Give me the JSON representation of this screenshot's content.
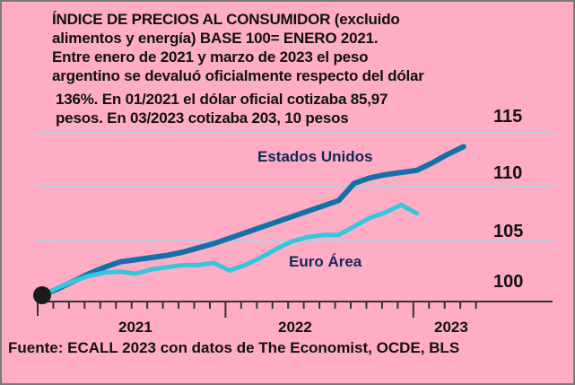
{
  "title_lines": [
    "ÍNDICE DE PRECIOS AL CONSUMIDOR (excluido",
    "alimentos y energía) BASE 100= ENERO 2021.",
    "Entre enero de 2021 y marzo de 2023 el peso",
    "argentino se devaluó oficialmente respecto del dólar",
    "136%. En 01/2021 el dólar oficial cotizaba 85,97",
    "pesos. En 03/2023 cotizaba 203, 10 pesos"
  ],
  "source": "Fuente: ECALL 2023 con datos de The Economist, OCDE, BLS",
  "chart_data": {
    "type": "line",
    "title": "ÍNDICE DE PRECIOS AL CONSUMIDOR (excluido alimentos y energía) BASE 100= ENERO 2021",
    "x_unit": "months since Jan 2021",
    "ylim": [
      100,
      115
    ],
    "yticks": [
      "100",
      "105",
      "110",
      "115"
    ],
    "xticks": [
      "2021",
      "2022",
      "2023"
    ],
    "grid": true,
    "series": [
      {
        "name": "Estados Unidos",
        "color": "#1470a8",
        "values": [
          100,
          100.6,
          101.3,
          102,
          102.6,
          103.1,
          103.3,
          103.5,
          103.7,
          104,
          104.4,
          104.8,
          105.3,
          105.8,
          106.3,
          106.8,
          107.3,
          107.8,
          108.3,
          108.8,
          110.4,
          110.9,
          111.2,
          111.4,
          111.6,
          112.3,
          113.1,
          113.8
        ]
      },
      {
        "name": "Euro Área",
        "color": "#35c6dc",
        "values": [
          100,
          100.7,
          101.3,
          101.8,
          102.1,
          102.2,
          102,
          102.4,
          102.6,
          102.8,
          102.8,
          103,
          102.3,
          102.8,
          103.5,
          104.3,
          105,
          105.4,
          105.6,
          105.6,
          106.4,
          107.2,
          107.7,
          108.4,
          107.6
        ]
      }
    ]
  }
}
